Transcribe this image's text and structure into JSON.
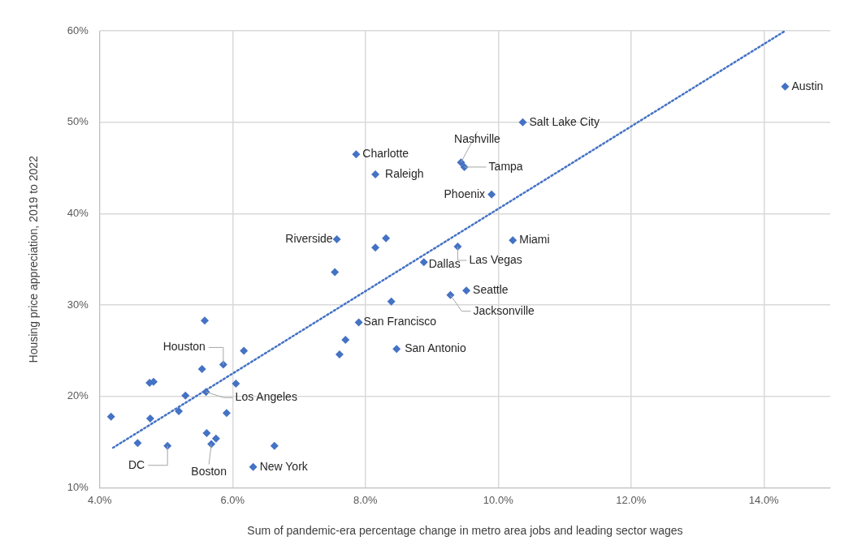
{
  "chart_data": {
    "type": "scatter",
    "xlabel": "Sum of pandemic-era percentage change in metro area jobs and leading sector wages",
    "ylabel": "Housing price appreciation, 2019 to 2022",
    "xlim": [
      4,
      15
    ],
    "xticks": [
      {
        "value": 4,
        "label": "4.0%"
      },
      {
        "value": 6,
        "label": "6.0%"
      },
      {
        "value": 8,
        "label": "8.0%"
      },
      {
        "value": 10,
        "label": "10.0%"
      },
      {
        "value": 12,
        "label": "12.0%"
      },
      {
        "value": 14,
        "label": "14.0%"
      }
    ],
    "ylim": [
      10,
      60
    ],
    "yticks": [
      {
        "value": 10,
        "label": "10%"
      },
      {
        "value": 20,
        "label": "20%"
      },
      {
        "value": 30,
        "label": "30%"
      },
      {
        "value": 40,
        "label": "40%"
      },
      {
        "value": 50,
        "label": "50%"
      },
      {
        "value": 60,
        "label": "60%"
      }
    ],
    "grid": true,
    "legend": false,
    "marker": "diamond",
    "series": [
      {
        "color": "#4472c4",
        "x": [
          14.32,
          10.37,
          9.44,
          9.49,
          7.86,
          8.15,
          9.9,
          7.57,
          8.15,
          8.31,
          8.88,
          9.39,
          10.22,
          7.54,
          9.52,
          9.28,
          8.39,
          7.9,
          7.7,
          7.61,
          8.47,
          5.58,
          6.17,
          5.86,
          5.54,
          4.75,
          4.81,
          6.05,
          5.6,
          5.29,
          4.17,
          4.76,
          5.19,
          5.91,
          4.57,
          5.02,
          5.61,
          5.75,
          5.68,
          6.63,
          6.31
        ],
        "values": [
          53.9,
          50.0,
          45.6,
          45.1,
          46.5,
          44.3,
          42.1,
          37.2,
          36.3,
          37.3,
          34.7,
          36.4,
          37.1,
          33.6,
          31.6,
          31.1,
          30.4,
          28.1,
          26.2,
          24.6,
          25.2,
          28.3,
          25.0,
          23.5,
          23.0,
          21.5,
          21.6,
          21.4,
          20.5,
          20.1,
          17.8,
          17.6,
          18.4,
          18.2,
          14.9,
          14.6,
          16.0,
          15.4,
          14.8,
          14.6,
          12.3
        ]
      },
      {
        "type": "line",
        "color": "#4472c4",
        "line_style": "dotted",
        "marker": "none",
        "x": [
          4.2,
          14.3
        ],
        "values": [
          14.4,
          59.9
        ]
      }
    ],
    "annotations": [
      {
        "text": "Austin",
        "x": 14.32,
        "y": 53.9
      },
      {
        "text": "Salt Lake City",
        "x": 10.37,
        "y": 50.0
      },
      {
        "text": "Nashville",
        "x": 9.44,
        "y": 45.6
      },
      {
        "text": "Tampa",
        "x": 9.49,
        "y": 45.1
      },
      {
        "text": "Charlotte",
        "x": 7.86,
        "y": 46.5
      },
      {
        "text": "Raleigh",
        "x": 8.15,
        "y": 44.3
      },
      {
        "text": "Phoenix",
        "x": 9.9,
        "y": 42.1
      },
      {
        "text": "Riverside",
        "x": 7.57,
        "y": 37.2
      },
      {
        "text": "Dallas",
        "x": 8.88,
        "y": 34.7
      },
      {
        "text": "Las Vegas",
        "x": 9.39,
        "y": 36.4
      },
      {
        "text": "Miami",
        "x": 10.22,
        "y": 37.1
      },
      {
        "text": "Seattle",
        "x": 9.52,
        "y": 31.6
      },
      {
        "text": "Jacksonville",
        "x": 9.28,
        "y": 31.1
      },
      {
        "text": "San Francisco",
        "x": 7.9,
        "y": 28.1
      },
      {
        "text": "San Antonio",
        "x": 8.47,
        "y": 25.2
      },
      {
        "text": "Houston",
        "x": 5.86,
        "y": 23.5
      },
      {
        "text": "Los Angeles",
        "x": 5.6,
        "y": 20.5
      },
      {
        "text": "DC",
        "x": 5.02,
        "y": 14.6
      },
      {
        "text": "Boston",
        "x": 5.68,
        "y": 14.8
      },
      {
        "text": "New York",
        "x": 6.31,
        "y": 12.3
      }
    ]
  }
}
